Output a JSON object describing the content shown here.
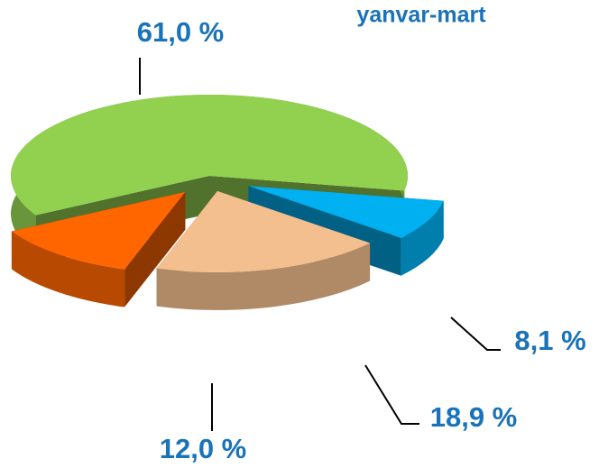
{
  "chart_data": {
    "type": "pie",
    "title": "yanvar-mart",
    "values": [
      61.0,
      8.1,
      18.9,
      12.0
    ],
    "value_labels": [
      "61,0 %",
      "8,1 %",
      "18,9 %",
      "12,0 %"
    ],
    "colors": [
      "#92d050",
      "#00b0f0",
      "#f4bf8f",
      "#ff6600"
    ]
  }
}
